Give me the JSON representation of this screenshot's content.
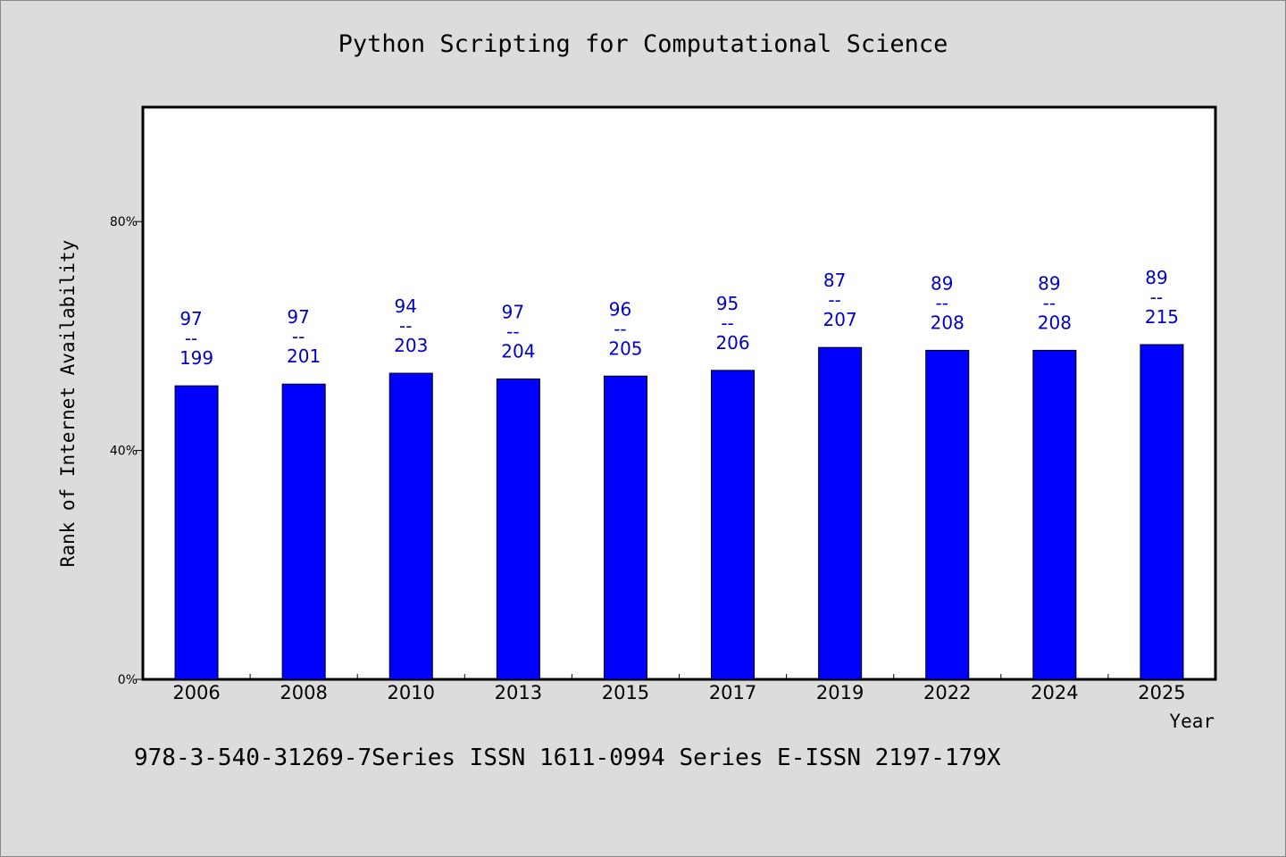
{
  "chart_data": {
    "type": "bar",
    "title": "Python Scripting for Computational Science",
    "xlabel": "Year",
    "ylabel": "Rank of Internet Availability",
    "categories": [
      "2006",
      "2008",
      "2010",
      "2013",
      "2015",
      "2017",
      "2019",
      "2022",
      "2024",
      "2025"
    ],
    "values": [
      51.3,
      51.6,
      53.5,
      52.5,
      53.0,
      54.0,
      58.0,
      57.5,
      57.5,
      58.5
    ],
    "labels": [
      {
        "top": "97",
        "sep": "--",
        "bottom": "199"
      },
      {
        "top": "97",
        "sep": "--",
        "bottom": "201"
      },
      {
        "top": "94",
        "sep": "--",
        "bottom": "203"
      },
      {
        "top": "97",
        "sep": "--",
        "bottom": "204"
      },
      {
        "top": "96",
        "sep": "--",
        "bottom": "205"
      },
      {
        "top": "95",
        "sep": "--",
        "bottom": "206"
      },
      {
        "top": "87",
        "sep": "--",
        "bottom": "207"
      },
      {
        "top": "89",
        "sep": "--",
        "bottom": "208"
      },
      {
        "top": "89",
        "sep": "--",
        "bottom": "208"
      },
      {
        "top": "89",
        "sep": "--",
        "bottom": "215"
      }
    ],
    "ylim": [
      0,
      100
    ],
    "yticks": [
      0,
      40,
      80
    ],
    "ytick_labels": [
      "0%",
      "40%",
      "80%"
    ],
    "grid": false,
    "bar_color": "#0000ff",
    "label_color": "#0000cc"
  },
  "footer": "978-3-540-31269-7Series ISSN 1611-0994 Series E-ISSN 2197-179X"
}
